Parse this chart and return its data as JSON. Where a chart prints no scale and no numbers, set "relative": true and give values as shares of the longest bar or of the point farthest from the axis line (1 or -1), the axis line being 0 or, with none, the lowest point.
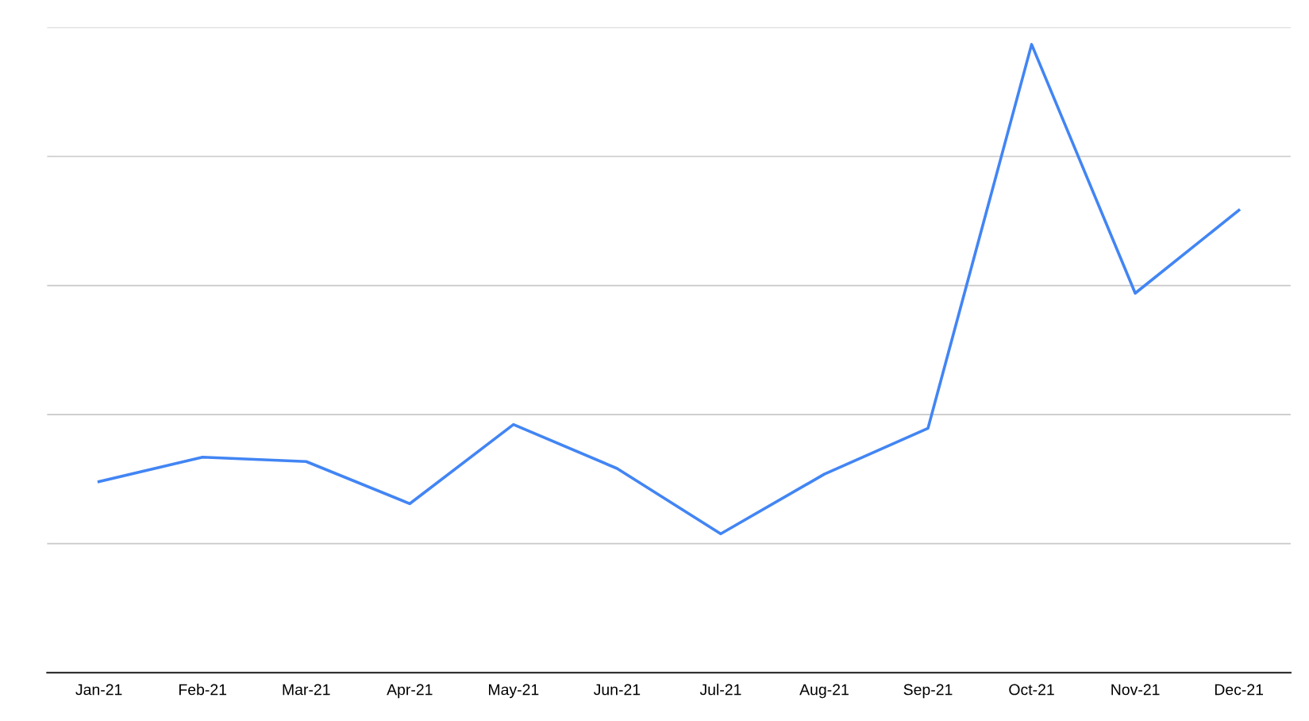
{
  "chart_data": {
    "type": "line",
    "relative": true,
    "grid": "y",
    "marker": "none",
    "line_style": "solid",
    "categories": [
      "Jan-21",
      "Feb-21",
      "Mar-21",
      "Apr-21",
      "May-21",
      "Jun-21",
      "Jul-21",
      "Aug-21",
      "Sep-21",
      "Oct-21",
      "Nov-21",
      "Dec-21"
    ],
    "series": [
      {
        "color": "#4285f4",
        "values": [
          0.304,
          0.343,
          0.336,
          0.269,
          0.395,
          0.325,
          0.221,
          0.316,
          0.389,
          1,
          0.604,
          0.736
        ]
      }
    ]
  }
}
